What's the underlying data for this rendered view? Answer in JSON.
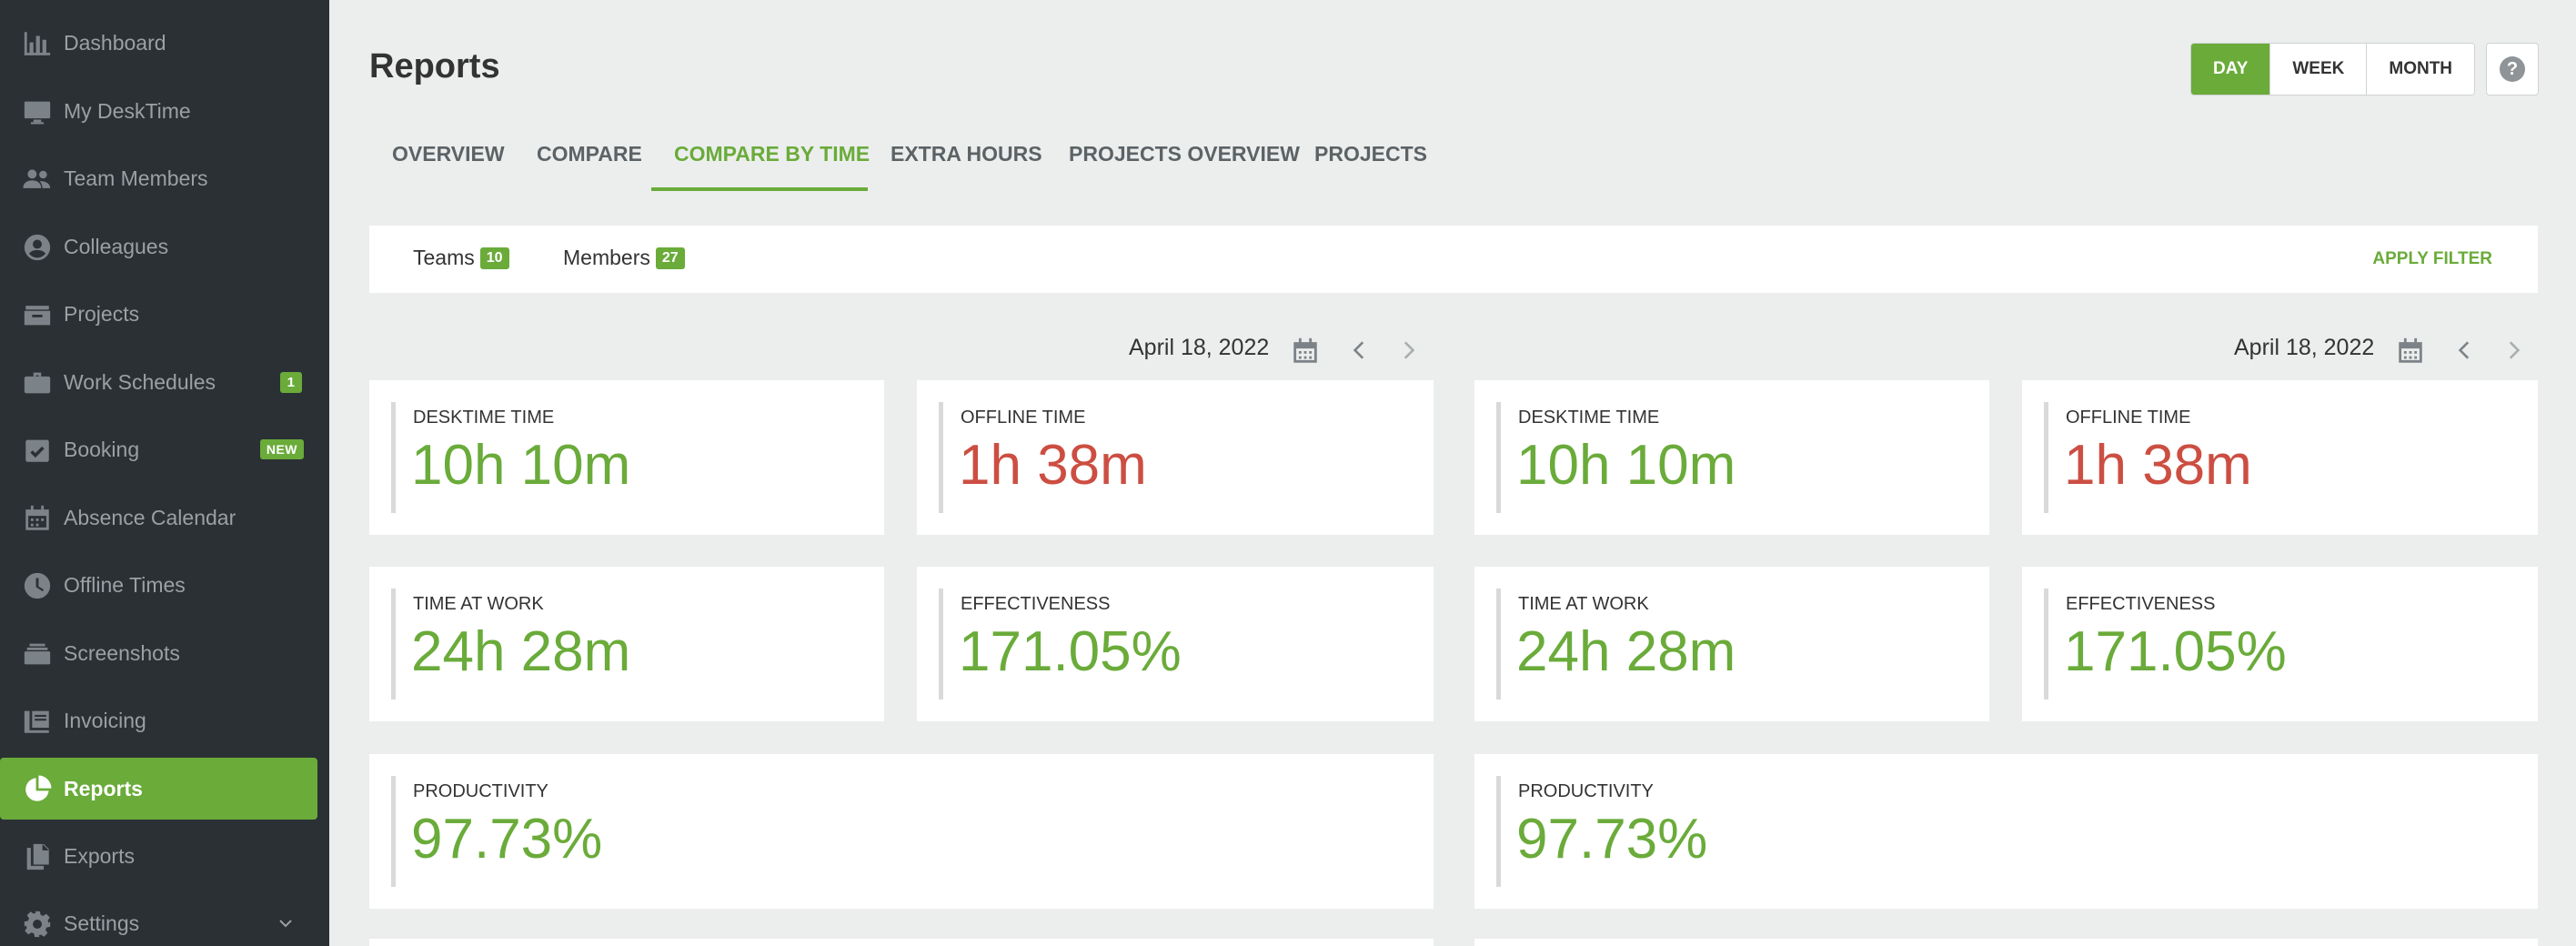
{
  "colors": {
    "sidebar_bg": "#2a3033",
    "accent_green": "#6aab3a",
    "offline_red": "#cc4e42",
    "page_bg": "#eceeed"
  },
  "sidebar": {
    "items": [
      {
        "label": "Dashboard",
        "icon": "bar-chart-icon"
      },
      {
        "label": "My DeskTime",
        "icon": "monitor-icon"
      },
      {
        "label": "Team Members",
        "icon": "people-icon"
      },
      {
        "label": "Colleagues",
        "icon": "user-circle-icon"
      },
      {
        "label": "Projects",
        "icon": "folder-icon"
      },
      {
        "label": "Work Schedules",
        "icon": "briefcase-icon",
        "badge": "1"
      },
      {
        "label": "Booking",
        "icon": "check-calendar-icon",
        "badge": "NEW"
      },
      {
        "label": "Absence Calendar",
        "icon": "calendar-icon"
      },
      {
        "label": "Offline Times",
        "icon": "clock-icon"
      },
      {
        "label": "Screenshots",
        "icon": "stack-icon"
      },
      {
        "label": "Invoicing",
        "icon": "invoice-icon"
      },
      {
        "label": "Reports",
        "icon": "pie-chart-icon",
        "active": true
      },
      {
        "label": "Exports",
        "icon": "files-icon"
      },
      {
        "label": "Settings",
        "icon": "gear-icon"
      }
    ]
  },
  "header": {
    "title": "Reports",
    "range_buttons": [
      "DAY",
      "WEEK",
      "MONTH"
    ],
    "active_range": "DAY",
    "help_label": "?"
  },
  "tabs": [
    {
      "label": "OVERVIEW"
    },
    {
      "label": "COMPARE"
    },
    {
      "label": "COMPARE BY TIME",
      "active": true
    },
    {
      "label": "EXTRA HOURS"
    },
    {
      "label": "PROJECTS OVERVIEW"
    },
    {
      "label": "PROJECTS"
    }
  ],
  "filter": {
    "teams_label": "Teams",
    "teams_count": "10",
    "members_label": "Members",
    "members_count": "27",
    "apply_label": "APPLY FILTER"
  },
  "columns": [
    {
      "date": "April 18, 2022",
      "stats": {
        "desktime_time": {
          "label": "DESKTIME TIME",
          "value": "10h 10m"
        },
        "offline_time": {
          "label": "OFFLINE TIME",
          "value": "1h 38m"
        },
        "time_at_work": {
          "label": "TIME AT WORK",
          "value": "24h 28m"
        },
        "effectiveness": {
          "label": "EFFECTIVENESS",
          "value": "171.05%"
        },
        "productivity": {
          "label": "PRODUCTIVITY",
          "value": "97.73%"
        }
      }
    },
    {
      "date": "April 18, 2022",
      "stats": {
        "desktime_time": {
          "label": "DESKTIME TIME",
          "value": "10h 10m"
        },
        "offline_time": {
          "label": "OFFLINE TIME",
          "value": "1h 38m"
        },
        "time_at_work": {
          "label": "TIME AT WORK",
          "value": "24h 28m"
        },
        "effectiveness": {
          "label": "EFFECTIVENESS",
          "value": "171.05%"
        },
        "productivity": {
          "label": "PRODUCTIVITY",
          "value": "97.73%"
        }
      }
    }
  ]
}
